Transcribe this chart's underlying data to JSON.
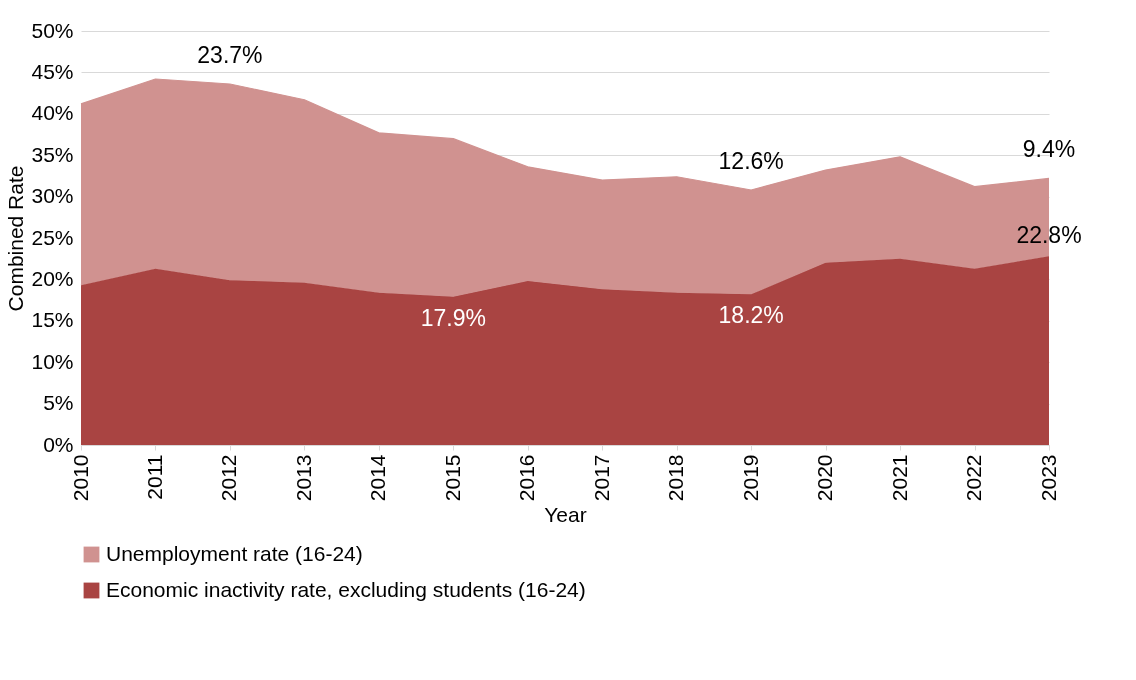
{
  "chart_data": {
    "type": "area",
    "stacked": true,
    "xlabel": "Year",
    "ylabel": "Combined Rate",
    "categories": [
      "2010",
      "2011",
      "2012",
      "2013",
      "2014",
      "2015",
      "2016",
      "2017",
      "2018",
      "2019",
      "2020",
      "2021",
      "2022",
      "2023"
    ],
    "series": [
      {
        "name": "Economic inactivity rate, excluding students (16-24)",
        "color": "#a94442",
        "values": [
          19.3,
          21.3,
          19.9,
          19.6,
          18.4,
          17.9,
          19.8,
          18.8,
          18.4,
          18.2,
          22.0,
          22.5,
          21.3,
          22.8
        ],
        "value_labels": [
          null,
          null,
          null,
          null,
          null,
          "17.9%",
          null,
          null,
          null,
          "18.2%",
          null,
          null,
          null,
          "22.8%"
        ]
      },
      {
        "name": "Unemployment rate (16-24)",
        "color": "#d09290",
        "values": [
          21.9,
          22.9,
          23.7,
          22.1,
          19.3,
          19.1,
          13.8,
          13.2,
          14.0,
          12.6,
          11.2,
          12.3,
          9.9,
          9.4
        ],
        "value_labels": [
          null,
          null,
          "23.7%",
          null,
          null,
          null,
          null,
          null,
          null,
          "12.6%",
          null,
          null,
          null,
          "9.4%"
        ]
      }
    ],
    "ylim": [
      0,
      50
    ],
    "yticks": [
      {
        "value": 0,
        "label": "0%"
      },
      {
        "value": 5,
        "label": "5%"
      },
      {
        "value": 10,
        "label": "10%"
      },
      {
        "value": 15,
        "label": "15%"
      },
      {
        "value": 20,
        "label": "20%"
      },
      {
        "value": 25,
        "label": "25%"
      },
      {
        "value": 30,
        "label": "30%"
      },
      {
        "value": 35,
        "label": "35%"
      },
      {
        "value": 40,
        "label": "40%"
      },
      {
        "value": 45,
        "label": "45%"
      },
      {
        "value": 50,
        "label": "50%"
      }
    ],
    "grid": "y",
    "legend": "bottom"
  }
}
